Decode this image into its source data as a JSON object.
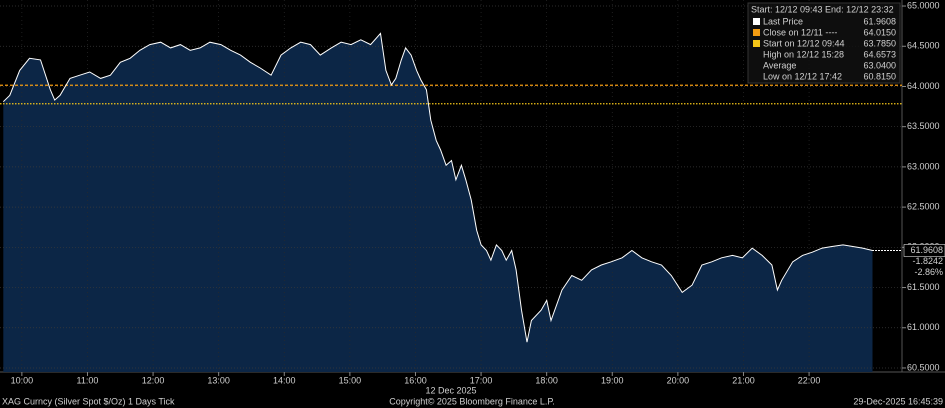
{
  "chart_data": {
    "type": "area",
    "legend_header": "Start: 12/12 09:43 End: 12/12 23:32",
    "legend": [
      {
        "name": "Last Price",
        "color": "#ffffff",
        "value": 61.9608
      },
      {
        "name": "Close on 12/11 ----",
        "color": "#f39c12",
        "value": {
          "value": 64.015,
          "label": "64.0150"
        }
      },
      {
        "name": "Start on 12/12 09:44",
        "color": "#f5c518",
        "value": {
          "value": 63.785,
          "label": "63.7850"
        }
      },
      {
        "name": "High on 12/12 15:28",
        "value": 64.6573
      },
      {
        "name": "Average",
        "value": {
          "value": 63.04,
          "label": "63.0400"
        }
      },
      {
        "name": "Low on 12/12 17:42",
        "value": {
          "value": 60.815,
          "label": "60.8150"
        }
      }
    ],
    "last_labels": [
      "61.9608",
      "-1.8242",
      "-2.86%"
    ],
    "x_label": "12 Dec 2025",
    "footer_left": "XAG Curncy (Silver Spot  $/Oz) 1 Days Tick",
    "footer_center": "Copyright© 2025 Bloomberg Finance L.P.",
    "footer_right": "29-Dec-2025 16:45:39",
    "color": "#ffffff",
    "fill": "#0c2646",
    "x": [
      "09:43",
      "09:49",
      "09:58",
      "10:07",
      "10:17",
      "10:26",
      "10:30",
      "10:35",
      "10:44",
      "10:53",
      "11:02",
      "11:12",
      "11:21",
      "11:30",
      "11:39",
      "11:48",
      "11:57",
      "12:07",
      "12:16",
      "12:25",
      "12:34",
      "12:43",
      "12:52",
      "13:02",
      "13:11",
      "13:20",
      "13:29",
      "13:38",
      "13:48",
      "13:57",
      "14:06",
      "14:15",
      "14:24",
      "14:33",
      "14:43",
      "14:52",
      "15:01",
      "15:10",
      "15:19",
      "15:28",
      "15:33",
      "15:38",
      "15:42",
      "15:47",
      "15:51",
      "15:56",
      "16:01",
      "16:05",
      "16:10",
      "16:14",
      "16:19",
      "16:23",
      "16:28",
      "16:33",
      "16:37",
      "16:42",
      "16:46",
      "16:51",
      "16:56",
      "17:00",
      "17:05",
      "17:09",
      "17:14",
      "17:19",
      "17:23",
      "17:28",
      "17:32",
      "17:37",
      "17:42",
      "17:46",
      "17:55",
      "18:00",
      "18:04",
      "18:14",
      "18:23",
      "18:32",
      "18:41",
      "18:50",
      "18:59",
      "19:09",
      "19:18",
      "19:27",
      "19:36",
      "19:45",
      "19:54",
      "20:04",
      "20:13",
      "20:22",
      "20:31",
      "20:40",
      "20:50",
      "20:59",
      "21:08",
      "21:17",
      "21:26",
      "21:31",
      "21:35",
      "21:45",
      "21:54",
      "22:03",
      "22:12",
      "22:21",
      "22:31",
      "22:40",
      "22:49",
      "22:58"
    ],
    "values": [
      63.81,
      63.89,
      64.2,
      64.35,
      64.33,
      63.96,
      63.83,
      63.89,
      64.1,
      64.14,
      64.18,
      64.1,
      64.14,
      64.3,
      64.35,
      64.45,
      64.52,
      64.55,
      64.48,
      64.52,
      64.45,
      64.48,
      64.55,
      64.52,
      64.45,
      64.39,
      64.3,
      64.23,
      64.14,
      64.39,
      64.48,
      64.55,
      64.52,
      64.39,
      64.48,
      64.55,
      64.52,
      64.58,
      64.52,
      64.66,
      64.2,
      64.02,
      64.1,
      64.33,
      64.48,
      64.39,
      64.2,
      64.08,
      63.96,
      63.58,
      63.33,
      63.21,
      63.02,
      63.08,
      62.84,
      63.02,
      62.84,
      62.59,
      62.21,
      62.03,
      61.96,
      61.84,
      62.03,
      61.96,
      61.84,
      61.96,
      61.72,
      61.22,
      60.82,
      61.09,
      61.22,
      61.34,
      61.09,
      61.47,
      61.65,
      61.59,
      61.72,
      61.78,
      61.82,
      61.87,
      61.96,
      61.87,
      61.82,
      61.78,
      61.65,
      61.44,
      61.53,
      61.78,
      61.82,
      61.87,
      61.9,
      61.87,
      61.99,
      61.9,
      61.78,
      61.47,
      61.59,
      61.82,
      61.9,
      61.94,
      61.99,
      62.01,
      62.03,
      62.01,
      61.99,
      61.9608
    ],
    "xlim": [
      "09:40",
      "23:25"
    ],
    "xticks": [
      "10:00",
      "11:00",
      "12:00",
      "13:00",
      "14:00",
      "15:00",
      "16:00",
      "17:00",
      "18:00",
      "19:00",
      "20:00",
      "21:00",
      "22:00"
    ],
    "ylim": [
      60.45,
      65.075
    ],
    "yticks": [
      {
        "value": 60.5,
        "label": "60.5000"
      },
      {
        "value": 61,
        "label": "61.0000"
      },
      {
        "value": 61.5,
        "label": "61.5000"
      },
      {
        "value": 62,
        "label": "62.0000"
      },
      {
        "value": 62.5,
        "label": "62.5000"
      },
      {
        "value": 63,
        "label": "63.0000"
      },
      {
        "value": 63.5,
        "label": "63.5000"
      },
      {
        "value": 64,
        "label": "64.0000"
      },
      {
        "value": 64.5,
        "label": "64.5000"
      },
      {
        "value": 65,
        "label": "65.0000"
      }
    ],
    "grid": true
  }
}
